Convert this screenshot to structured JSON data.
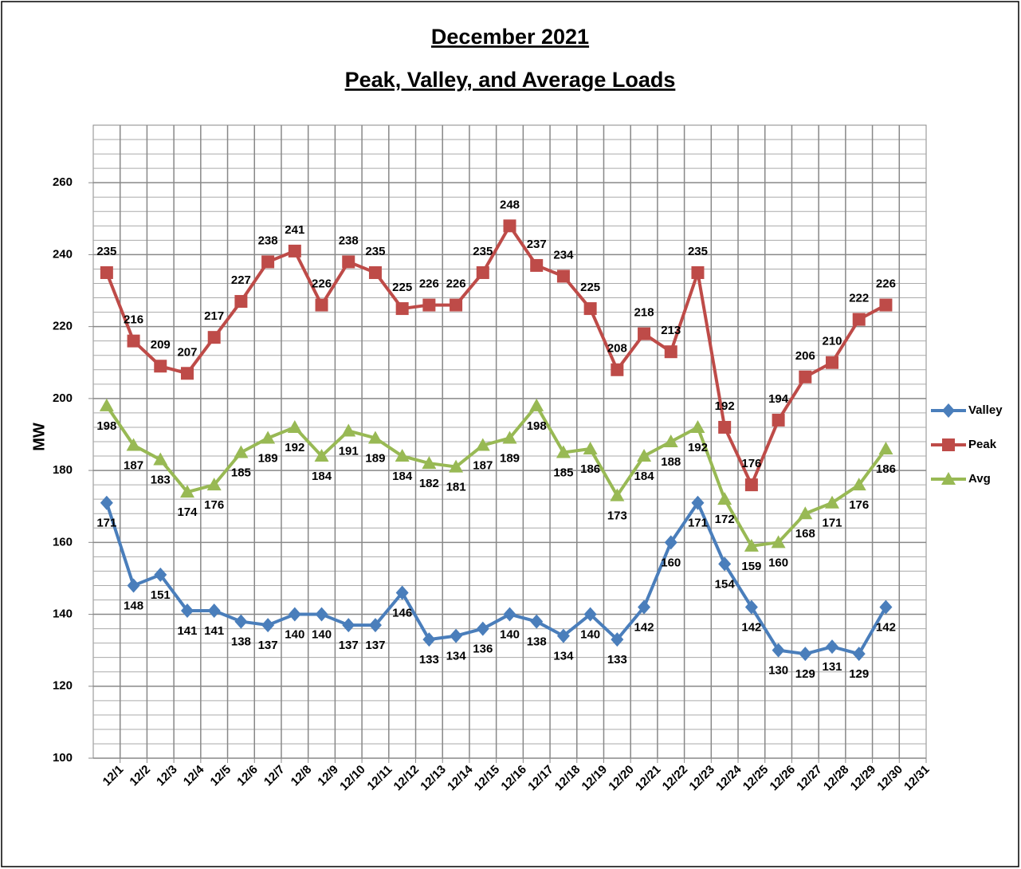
{
  "chart_data": {
    "type": "line",
    "title": [
      "December 2021",
      "Peak, Valley, and Average Loads"
    ],
    "y_label": "MW",
    "categories": [
      "12/1",
      "12/2",
      "12/3",
      "12/4",
      "12/5",
      "12/6",
      "12/7",
      "12/8",
      "12/9",
      "12/10",
      "12/11",
      "12/12",
      "12/13",
      "12/14",
      "12/15",
      "12/16",
      "12/17",
      "12/18",
      "12/19",
      "12/20",
      "12/21",
      "12/22",
      "12/23",
      "12/24",
      "12/25",
      "12/26",
      "12/27",
      "12/28",
      "12/29",
      "12/30",
      "12/31"
    ],
    "series": [
      {
        "name": "Valley",
        "color": "#4a7ebb",
        "marker": "diamond",
        "label_side": "below",
        "values": [
          171,
          148,
          151,
          141,
          141,
          138,
          137,
          140,
          140,
          137,
          137,
          146,
          133,
          134,
          136,
          140,
          138,
          134,
          140,
          133,
          142,
          160,
          171,
          154,
          142,
          130,
          129,
          131,
          129,
          142,
          null
        ]
      },
      {
        "name": "Peak",
        "color": "#be4b48",
        "marker": "square",
        "label_side": "above",
        "values": [
          235,
          216,
          209,
          207,
          217,
          227,
          238,
          241,
          226,
          238,
          235,
          225,
          226,
          226,
          235,
          248,
          237,
          234,
          225,
          208,
          218,
          213,
          235,
          192,
          176,
          194,
          206,
          210,
          222,
          226,
          null
        ]
      },
      {
        "name": "Avg",
        "color": "#98b954",
        "marker": "triangle",
        "label_side": "below",
        "values": [
          198,
          187,
          183,
          174,
          176,
          185,
          189,
          192,
          184,
          191,
          189,
          184,
          182,
          181,
          187,
          189,
          198,
          185,
          186,
          173,
          184,
          188,
          192,
          172,
          159,
          160,
          168,
          171,
          176,
          186,
          null
        ]
      }
    ],
    "ylim": [
      100,
      276
    ],
    "yticks": [
      100,
      120,
      140,
      160,
      180,
      200,
      220,
      240,
      260
    ],
    "grid": true,
    "legend": "right"
  }
}
